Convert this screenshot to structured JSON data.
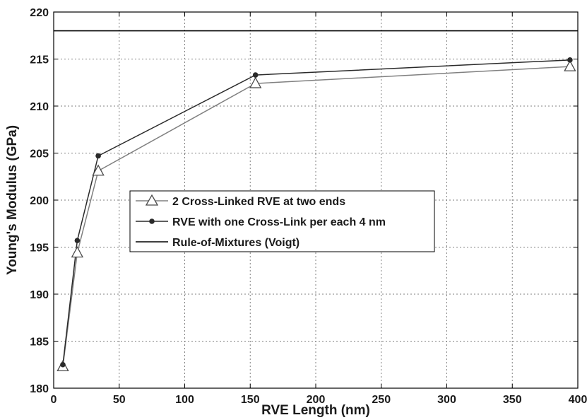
{
  "chart_data": {
    "type": "line",
    "xlabel": "RVE Length (nm)",
    "ylabel": "Young's Modulus (GPa)",
    "xlim": [
      0,
      400
    ],
    "ylim": [
      180,
      220
    ],
    "x_ticks": [
      0,
      50,
      100,
      150,
      200,
      250,
      300,
      350,
      400
    ],
    "y_ticks": [
      180,
      185,
      190,
      195,
      200,
      205,
      210,
      215,
      220
    ],
    "grid": true,
    "legend_position": "center-left",
    "series": [
      {
        "name": "2 Cross-Linked RVE at two ends",
        "marker": "open-triangle",
        "color": "#808080",
        "x": [
          7,
          18,
          34,
          154,
          394
        ],
        "y": [
          182.3,
          194.4,
          203.1,
          212.4,
          214.2
        ]
      },
      {
        "name": "RVE with one Cross-Link per each 4 nm",
        "marker": "filled-circle",
        "color": "#2a2a2a",
        "x": [
          7,
          18,
          34,
          154,
          394
        ],
        "y": [
          182.5,
          195.7,
          204.7,
          213.3,
          214.9
        ]
      },
      {
        "name": "Rule-of-Mixtures (Voigt)",
        "marker": "none",
        "color": "#000000",
        "x": [
          0,
          400
        ],
        "y": [
          218,
          218
        ]
      }
    ]
  }
}
